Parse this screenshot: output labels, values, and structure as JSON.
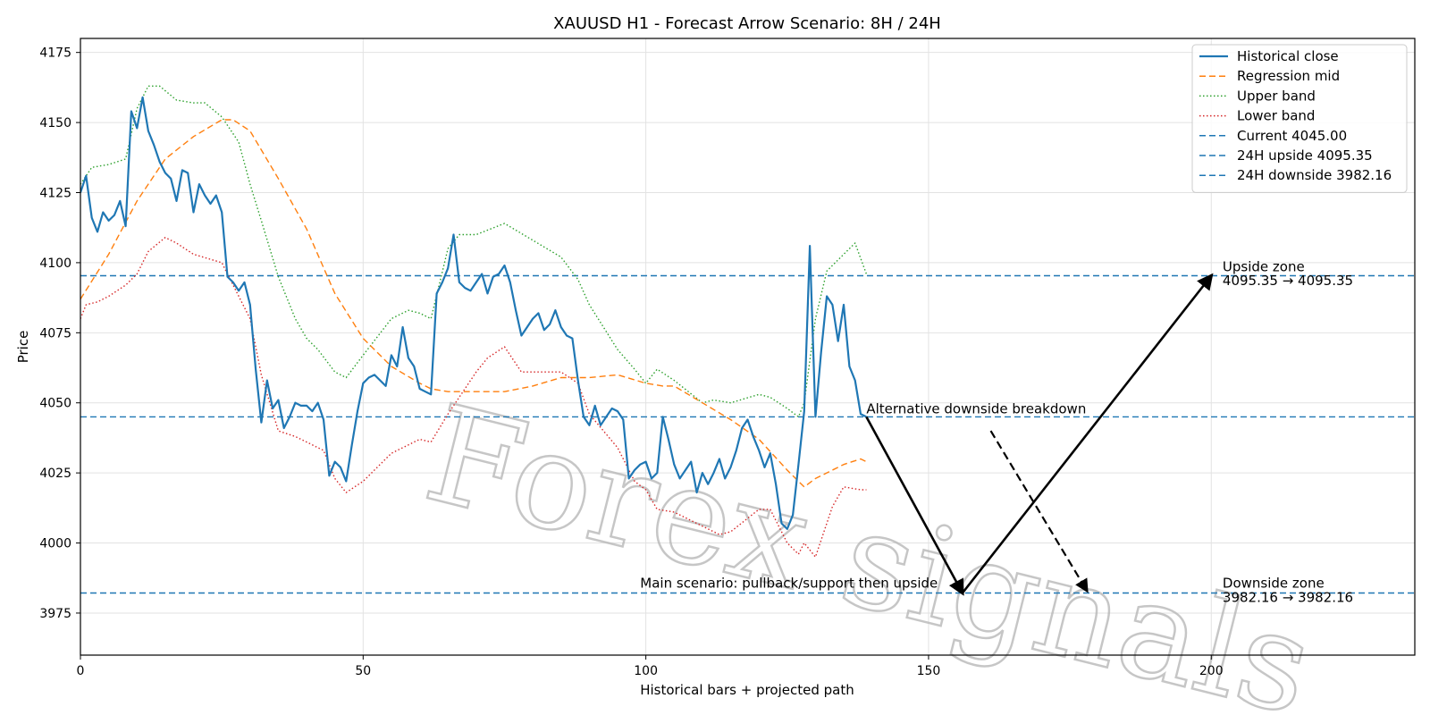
{
  "chart_data": {
    "type": "line",
    "title": "XAUUSD H1 - Forecast Arrow Scenario: 8H / 24H",
    "xlabel": "Historical bars + projected path",
    "ylabel": "Price",
    "xlim": [
      0,
      236
    ],
    "ylim": [
      3960,
      4180
    ],
    "xticks": [
      0,
      50,
      100,
      150,
      200
    ],
    "yticks": [
      3975,
      4000,
      4025,
      4050,
      4075,
      4100,
      4125,
      4150,
      4175
    ],
    "grid": true,
    "legend_position": "top-right",
    "watermark": "Forex signals",
    "series": [
      {
        "name": "Historical close",
        "color": "#1f77b4",
        "style": "solid",
        "x": [
          0,
          1,
          2,
          3,
          4,
          5,
          6,
          7,
          8,
          9,
          10,
          11,
          12,
          13,
          14,
          15,
          16,
          17,
          18,
          19,
          20,
          21,
          22,
          23,
          24,
          25,
          26,
          27,
          28,
          29,
          30,
          31,
          32,
          33,
          34,
          35,
          36,
          37,
          38,
          39,
          40,
          41,
          42,
          43,
          44,
          45,
          46,
          47,
          48,
          49,
          50,
          51,
          52,
          53,
          54,
          55,
          56,
          57,
          58,
          59,
          60,
          61,
          62,
          63,
          64,
          65,
          66,
          67,
          68,
          69,
          70,
          71,
          72,
          73,
          74,
          75,
          76,
          77,
          78,
          79,
          80,
          81,
          82,
          83,
          84,
          85,
          86,
          87,
          88,
          89,
          90,
          91,
          92,
          93,
          94,
          95,
          96,
          97,
          98,
          99,
          100,
          101,
          102,
          103,
          104,
          105,
          106,
          107,
          108,
          109,
          110,
          111,
          112,
          113,
          114,
          115,
          116,
          117,
          118,
          119,
          120,
          121,
          122,
          123,
          124,
          125,
          126,
          127,
          128,
          129,
          130,
          131,
          132,
          133,
          134,
          135,
          136,
          137,
          138,
          139
        ],
        "values": [
          4125,
          4131,
          4116,
          4111,
          4118,
          4115,
          4117,
          4122,
          4113,
          4154,
          4148,
          4159,
          4147,
          4142,
          4136,
          4132,
          4130,
          4122,
          4133,
          4132,
          4118,
          4128,
          4124,
          4121,
          4124,
          4118,
          4095,
          4093,
          4090,
          4093,
          4085,
          4062,
          4043,
          4058,
          4048,
          4051,
          4041,
          4045,
          4050,
          4049,
          4049,
          4047,
          4050,
          4044,
          4024,
          4029,
          4027,
          4022,
          4035,
          4047,
          4057,
          4059,
          4060,
          4058,
          4056,
          4067,
          4063,
          4077,
          4066,
          4063,
          4055,
          4054,
          4053,
          4089,
          4093,
          4098,
          4110,
          4093,
          4091,
          4090,
          4093,
          4096,
          4089,
          4095,
          4096,
          4099,
          4093,
          4083,
          4074,
          4077,
          4080,
          4082,
          4076,
          4078,
          4083,
          4077,
          4074,
          4073,
          4058,
          4045,
          4042,
          4049,
          4042,
          4045,
          4048,
          4047,
          4044,
          4023,
          4026,
          4028,
          4029,
          4023,
          4025,
          4045,
          4037,
          4028,
          4023,
          4026,
          4029,
          4018,
          4025,
          4021,
          4025,
          4030,
          4023,
          4027,
          4033,
          4041,
          4044,
          4038,
          4033,
          4027,
          4032,
          4021,
          4007,
          4005,
          4010,
          4028,
          4047,
          4106,
          4045,
          4068,
          4088,
          4085,
          4072,
          4085,
          4063,
          4058,
          4046,
          4045
        ]
      },
      {
        "name": "Regression mid",
        "color": "#ff7f0e",
        "style": "dashed",
        "x": [
          0,
          5,
          10,
          15,
          20,
          25,
          27,
          30,
          35,
          40,
          45,
          50,
          55,
          60,
          62,
          65,
          70,
          75,
          80,
          85,
          88,
          90,
          95,
          100,
          103,
          105,
          110,
          115,
          120,
          125,
          128,
          130,
          135,
          138,
          139
        ],
        "values": [
          4087,
          4103,
          4122,
          4137,
          4145,
          4151,
          4151,
          4147,
          4130,
          4112,
          4089,
          4073,
          4063,
          4057,
          4055,
          4054,
          4054,
          4054,
          4056,
          4059,
          4059,
          4059,
          4060,
          4057,
          4056,
          4056,
          4050,
          4044,
          4037,
          4026,
          4020,
          4023,
          4028,
          4030,
          4029
        ]
      },
      {
        "name": "Upper band",
        "color": "#2ca02c",
        "style": "dotted",
        "x": [
          0,
          2,
          5,
          8,
          10,
          12,
          14,
          17,
          20,
          22,
          25,
          28,
          30,
          32,
          35,
          38,
          40,
          42,
          45,
          47,
          50,
          55,
          58,
          60,
          62,
          65,
          67,
          70,
          75,
          80,
          85,
          88,
          90,
          95,
          98,
          100,
          102,
          105,
          110,
          112,
          115,
          120,
          122,
          125,
          127,
          128,
          130,
          132,
          135,
          137,
          139
        ],
        "values": [
          4128,
          4134,
          4135,
          4137,
          4155,
          4163,
          4163,
          4158,
          4157,
          4157,
          4152,
          4143,
          4128,
          4115,
          4095,
          4080,
          4073,
          4069,
          4061,
          4059,
          4067,
          4080,
          4083,
          4082,
          4080,
          4105,
          4110,
          4110,
          4114,
          4108,
          4102,
          4094,
          4085,
          4069,
          4062,
          4057,
          4062,
          4058,
          4050,
          4051,
          4050,
          4053,
          4052,
          4048,
          4045,
          4050,
          4080,
          4097,
          4103,
          4107,
          4096
        ]
      },
      {
        "name": "Lower band",
        "color": "#d62728",
        "style": "dotted",
        "x": [
          0,
          1,
          3,
          5,
          8,
          10,
          12,
          15,
          17,
          20,
          25,
          30,
          32,
          35,
          38,
          40,
          43,
          45,
          47,
          50,
          55,
          60,
          62,
          65,
          68,
          70,
          72,
          75,
          78,
          80,
          85,
          88,
          90,
          95,
          98,
          100,
          102,
          105,
          110,
          113,
          115,
          120,
          122,
          125,
          127,
          128,
          130,
          133,
          135,
          138,
          139
        ],
        "values": [
          4080,
          4085,
          4086,
          4088,
          4092,
          4096,
          4104,
          4109,
          4107,
          4103,
          4100,
          4080,
          4060,
          4040,
          4038,
          4036,
          4033,
          4023,
          4018,
          4022,
          4032,
          4037,
          4036,
          4046,
          4055,
          4061,
          4066,
          4070,
          4061,
          4061,
          4061,
          4057,
          4046,
          4034,
          4022,
          4019,
          4012,
          4011,
          4006,
          4003,
          4004,
          4012,
          4012,
          4000,
          3996,
          4000,
          3995,
          4013,
          4020,
          4019,
          4019
        ]
      }
    ],
    "horizontal_lines": [
      {
        "name": "Current 4045.00",
        "value": 4045.0,
        "color": "#1f77b4",
        "style": "dashed"
      },
      {
        "name": "24H upside 4095.35",
        "value": 4095.35,
        "color": "#1f77b4",
        "style": "dashed"
      },
      {
        "name": "24H downside 3982.16",
        "value": 3982.16,
        "color": "#1f77b4",
        "style": "dashed"
      }
    ],
    "arrows": [
      {
        "label": "Main scenario: pullback/support then upside",
        "from": [
          139,
          4045.0
        ],
        "to": [
          156,
          3982.16
        ],
        "style": "solid"
      },
      {
        "label": "Main scenario: pullback/support then upside",
        "from": [
          156,
          3982.16
        ],
        "to": [
          200,
          4095.35
        ],
        "style": "solid"
      },
      {
        "label": "Alternative downside breakdown",
        "from": [
          161,
          4040
        ],
        "to": [
          178,
          3983
        ],
        "style": "dashed"
      }
    ],
    "annotations": [
      {
        "text": "Upside zone",
        "x": 202,
        "y": 4097
      },
      {
        "text": "4095.35 → 4095.35",
        "x": 202,
        "y": 4092
      },
      {
        "text": "Downside zone",
        "x": 202,
        "y": 3984
      },
      {
        "text": "3982.16 → 3982.16",
        "x": 202,
        "y": 3979
      },
      {
        "text": "Main scenario: pullback/support then upside",
        "x": 99,
        "y": 3984
      },
      {
        "text": "Alternative downside breakdown",
        "x": 139,
        "y": 4046.3
      }
    ]
  }
}
